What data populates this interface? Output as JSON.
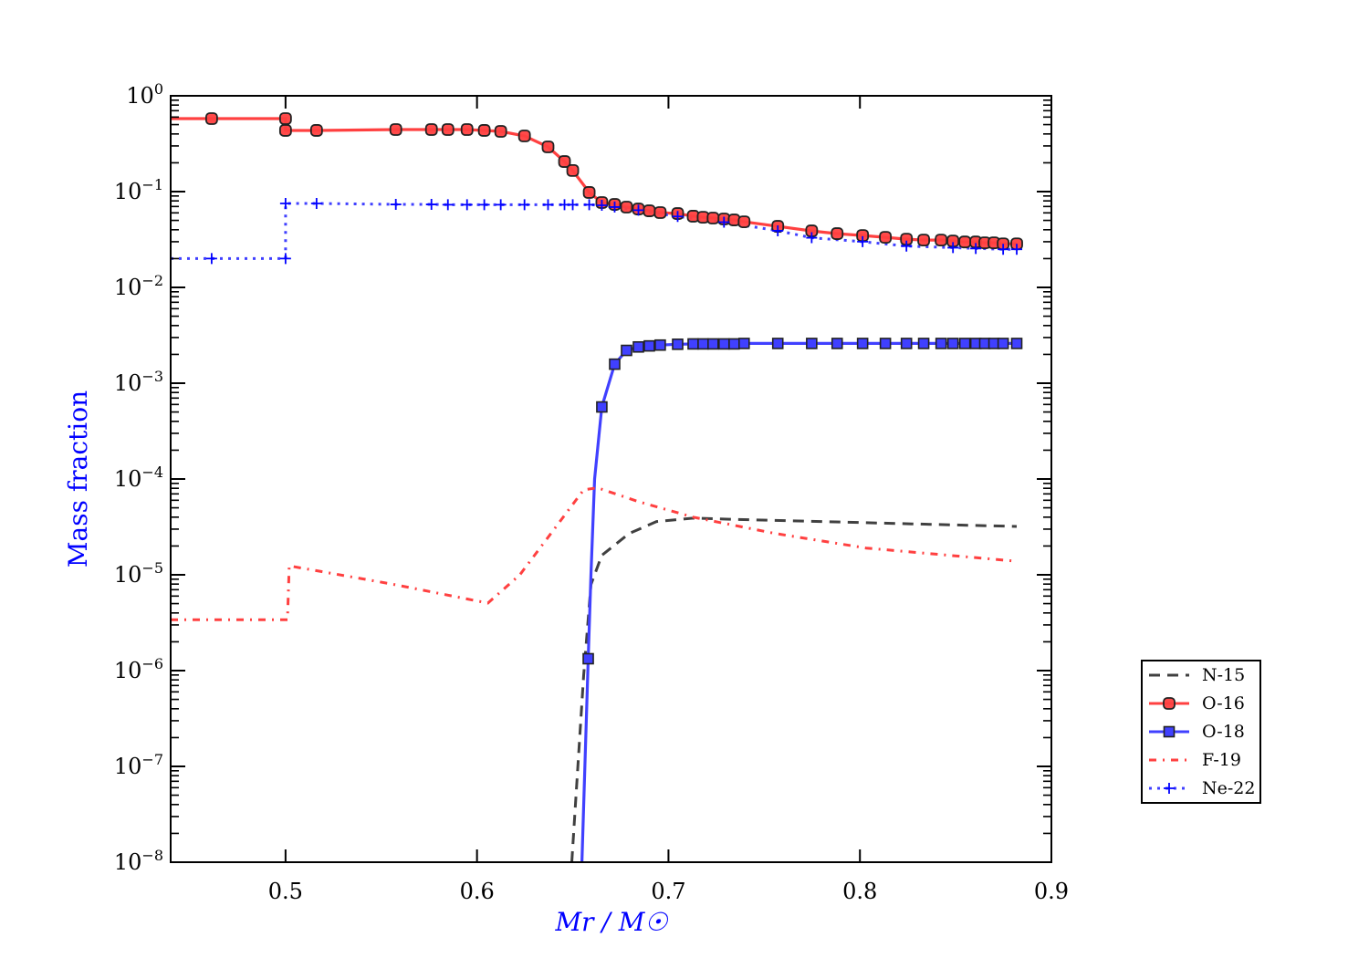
{
  "chart_data": {
    "type": "line",
    "title": "",
    "xlabel": "Mr / M☉",
    "ylabel": "Mass fraction",
    "xlim": [
      0.44,
      0.9
    ],
    "ylim": [
      1e-08,
      1
    ],
    "yscale": "log",
    "grid": false,
    "legend_position": "outside-right",
    "label_color": "#0000ff",
    "x_ticks": [
      0.5,
      0.6,
      0.7,
      0.8,
      0.9
    ],
    "x_tick_labels": [
      "0.5",
      "0.6",
      "0.7",
      "0.8",
      "0.9"
    ],
    "y_ticks": [
      0,
      -1,
      -2,
      -3,
      -4,
      -5,
      -6,
      -7,
      -8
    ],
    "y_tick_labels": [
      {
        "base": "10",
        "exp": "0"
      },
      {
        "base": "10",
        "exp": "−1"
      },
      {
        "base": "10",
        "exp": "−2"
      },
      {
        "base": "10",
        "exp": "−3"
      },
      {
        "base": "10",
        "exp": "−4"
      },
      {
        "base": "10",
        "exp": "−5"
      },
      {
        "base": "10",
        "exp": "−6"
      },
      {
        "base": "10",
        "exp": "−7"
      },
      {
        "base": "10",
        "exp": "−8"
      }
    ],
    "series": [
      {
        "name": "N-15",
        "color": "#404040",
        "style": "dashed",
        "marker": "none",
        "x": [
          0.6495,
          0.6557,
          0.6595,
          0.6652,
          0.6795,
          0.6938,
          0.7129,
          0.7319,
          0.7795,
          0.8271,
          0.8819
        ],
        "y": [
          1e-08,
          8.9e-07,
          7.9e-06,
          1.6e-05,
          2.7e-05,
          3.6e-05,
          3.9e-05,
          3.8e-05,
          3.6e-05,
          3.4e-05,
          3.2e-05
        ]
      },
      {
        "name": "O-16",
        "color": "#ff4040",
        "style": "solid",
        "marker": "circle",
        "x": [
          0.44,
          0.4614,
          0.5,
          0.5,
          0.5162,
          0.5576,
          0.5762,
          0.5848,
          0.5948,
          0.6038,
          0.6124,
          0.6248,
          0.6371,
          0.6457,
          0.65,
          0.6586,
          0.6652,
          0.6719,
          0.6781,
          0.6843,
          0.69,
          0.6957,
          0.7048,
          0.7129,
          0.7181,
          0.7233,
          0.729,
          0.7343,
          0.7395,
          0.7571,
          0.7748,
          0.7881,
          0.8014,
          0.8133,
          0.8243,
          0.8333,
          0.8424,
          0.8486,
          0.8548,
          0.8605,
          0.8652,
          0.87,
          0.8748,
          0.8819
        ],
        "y": [
          0.578,
          0.578,
          0.578,
          0.435,
          0.435,
          0.444,
          0.444,
          0.444,
          0.444,
          0.435,
          0.425,
          0.381,
          0.293,
          0.206,
          0.166,
          0.098,
          0.0769,
          0.0735,
          0.0689,
          0.0658,
          0.063,
          0.0604,
          0.059,
          0.0554,
          0.054,
          0.0529,
          0.0518,
          0.0506,
          0.0484,
          0.0434,
          0.0389,
          0.0364,
          0.0348,
          0.0333,
          0.0319,
          0.0312,
          0.0312,
          0.0305,
          0.0298,
          0.0298,
          0.0292,
          0.0292,
          0.0285,
          0.0285
        ],
        "marker_from": 1
      },
      {
        "name": "O-18",
        "color": "#4040ff",
        "style": "solid",
        "marker": "square",
        "x": [
          0.6548,
          0.6581,
          0.6595,
          0.6614,
          0.6652,
          0.6719,
          0.6781,
          0.6843,
          0.69,
          0.6957,
          0.7048,
          0.7129,
          0.7181,
          0.7233,
          0.729,
          0.7343,
          0.7395,
          0.7571,
          0.7748,
          0.7881,
          0.8014,
          0.8133,
          0.8243,
          0.8333,
          0.8424,
          0.8486,
          0.8548,
          0.8605,
          0.8652,
          0.87,
          0.8748,
          0.8819
        ],
        "y": [
          1e-08,
          1.33e-06,
          1e-05,
          0.0001,
          0.000565,
          0.00158,
          0.0022,
          0.00239,
          0.00245,
          0.0025,
          0.00255,
          0.00257,
          0.00257,
          0.00257,
          0.00257,
          0.00257,
          0.0026,
          0.0026,
          0.0026,
          0.0026,
          0.0026,
          0.0026,
          0.0026,
          0.0026,
          0.0026,
          0.0026,
          0.0026,
          0.0026,
          0.0026,
          0.0026,
          0.0026,
          0.0026
        ],
        "marker_skip": [
          0,
          2,
          3
        ]
      },
      {
        "name": "F-19",
        "color": "#ff4040",
        "style": "dashdot",
        "marker": "none",
        "x": [
          0.44,
          0.501,
          0.5019,
          0.5557,
          0.6057,
          0.6224,
          0.6367,
          0.6557,
          0.6629,
          0.6843,
          0.7129,
          0.7557,
          0.8033,
          0.8795
        ],
        "y": [
          3.4e-06,
          3.4e-06,
          1.24e-05,
          8e-06,
          5.07e-06,
          1e-05,
          2.4e-05,
          7.7e-05,
          8.1e-05,
          5.8e-05,
          4e-05,
          2.7e-05,
          1.9e-05,
          1.4e-05
        ]
      },
      {
        "name": "Ne-22",
        "color": "#4040ff",
        "style": "dotted",
        "marker": "plus",
        "x": [
          0.44,
          0.4614,
          0.5,
          0.5,
          0.5162,
          0.5576,
          0.5762,
          0.5848,
          0.5948,
          0.6038,
          0.6124,
          0.6248,
          0.6371,
          0.6457,
          0.65,
          0.6586,
          0.6652,
          0.6719,
          0.6843,
          0.7048,
          0.729,
          0.7571,
          0.7748,
          0.8014,
          0.8243,
          0.8486,
          0.8605,
          0.8748,
          0.8819
        ],
        "y": [
          0.02,
          0.02,
          0.02,
          0.0752,
          0.0752,
          0.0735,
          0.0735,
          0.073,
          0.073,
          0.073,
          0.073,
          0.073,
          0.073,
          0.073,
          0.073,
          0.073,
          0.072,
          0.069,
          0.064,
          0.055,
          0.048,
          0.039,
          0.033,
          0.03,
          0.027,
          0.026,
          0.0255,
          0.025,
          0.025
        ],
        "marker_from": 1
      }
    ]
  }
}
